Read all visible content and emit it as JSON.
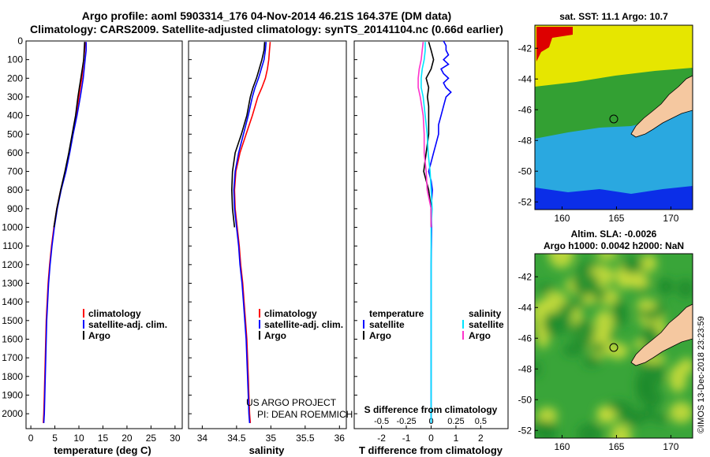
{
  "title_line1": "Argo profile: aoml 5903314_176 04-Nov-2014 46.21S 164.37E (DM data)",
  "title_line2": "Climatology: CARS2009. Satellite-adjusted climatology: synTS_20141104.nc (0.66d earlier)",
  "watermark": "©IMOS 13-Dec-2018 23:23:59",
  "credit_line1": "US ARGO PROJECT",
  "credit_line2": "PI: DEAN ROEMMICH",
  "colors": {
    "climatology": "#ff0000",
    "satellite": "#0000ff",
    "argo": "#000000",
    "s_satellite": "#00e5ff",
    "s_argo": "#ff33cc",
    "yellow_water": "#e6e600",
    "green_water": "#33a033",
    "blue_water": "#2aa8e0",
    "land": "#f5c8a0"
  },
  "chart_data": [
    {
      "type": "line",
      "name": "temperature panel",
      "xlabel": "temperature (deg C)",
      "ylabel": "",
      "xlim": [
        -1,
        31.5
      ],
      "ylim": [
        2080,
        0
      ],
      "xticks": [
        "0",
        "5",
        "10",
        "15",
        "20",
        "25",
        "30"
      ],
      "yticks": [
        "0",
        "100",
        "200",
        "300",
        "400",
        "500",
        "600",
        "700",
        "800",
        "900",
        "1000",
        "1100",
        "1200",
        "1300",
        "1400",
        "1500",
        "1600",
        "1700",
        "1800",
        "1900",
        "2000"
      ],
      "legend": [
        "climatology",
        "satellite-adj. clim.",
        "Argo"
      ],
      "series": [
        {
          "name": "climatology",
          "depth": [
            5,
            50,
            100,
            150,
            200,
            250,
            300,
            400,
            500,
            600,
            700,
            800,
            900,
            1000,
            1100,
            1200,
            1300,
            1400,
            1500,
            1600,
            1700,
            1800,
            1900,
            2000,
            2050
          ],
          "values": [
            11.3,
            11.2,
            11.0,
            10.8,
            10.6,
            10.3,
            10.0,
            9.4,
            8.7,
            8.0,
            7.2,
            6.2,
            5.4,
            4.8,
            4.3,
            3.9,
            3.6,
            3.4,
            3.2,
            3.1,
            3.0,
            2.9,
            2.8,
            2.7,
            2.6
          ]
        },
        {
          "name": "satellite-adj. clim.",
          "depth": [
            5,
            50,
            100,
            150,
            200,
            250,
            300,
            400,
            500,
            600,
            700,
            800,
            900,
            1000,
            1100,
            1200,
            1300,
            1400,
            1500,
            1600,
            1700,
            1800,
            1900,
            2000,
            2050
          ],
          "values": [
            11.5,
            11.5,
            11.3,
            11.1,
            10.9,
            10.6,
            10.3,
            9.6,
            8.8,
            8.1,
            7.3,
            6.3,
            5.5,
            4.9,
            4.4,
            4.0,
            3.7,
            3.5,
            3.3,
            3.2,
            3.1,
            3.0,
            2.9,
            2.8,
            2.7
          ]
        },
        {
          "name": "Argo",
          "depth": [
            5,
            50,
            100,
            150,
            200,
            250,
            300,
            400,
            500,
            600,
            700,
            800,
            900,
            1000
          ],
          "values": [
            11.2,
            11.1,
            11.0,
            10.7,
            10.4,
            10.1,
            9.8,
            9.3,
            8.6,
            7.9,
            7.1,
            6.2,
            5.4,
            4.8
          ]
        }
      ]
    },
    {
      "type": "line",
      "name": "salinity panel",
      "xlabel": "salinity",
      "ylabel": "",
      "xlim": [
        33.8,
        36.1
      ],
      "ylim": [
        2080,
        0
      ],
      "xticks": [
        "34",
        "34.5",
        "35",
        "35.5",
        "36"
      ],
      "legend": [
        "climatology",
        "satellite-adj. clim.",
        "Argo"
      ],
      "series": [
        {
          "name": "climatology",
          "depth": [
            5,
            50,
            100,
            150,
            200,
            250,
            300,
            400,
            500,
            600,
            700,
            800,
            900,
            1000,
            1100,
            1200,
            1300,
            1400,
            1500,
            1600,
            1700,
            1800,
            1900,
            2000,
            2050
          ],
          "values": [
            34.99,
            34.98,
            34.97,
            34.95,
            34.92,
            34.87,
            34.81,
            34.73,
            34.64,
            34.55,
            34.49,
            34.47,
            34.48,
            34.51,
            34.54,
            34.56,
            34.59,
            34.61,
            34.63,
            34.65,
            34.66,
            34.67,
            34.68,
            34.69,
            34.7
          ]
        },
        {
          "name": "satellite-adj. clim.",
          "depth": [
            5,
            50,
            100,
            150,
            200,
            250,
            300,
            400,
            500,
            600,
            700,
            800,
            900,
            1000,
            1100,
            1200,
            1300,
            1400,
            1500,
            1600,
            1700,
            1800,
            1900,
            2000,
            2050
          ],
          "values": [
            34.93,
            34.92,
            34.9,
            34.86,
            34.82,
            34.77,
            34.73,
            34.67,
            34.6,
            34.53,
            34.48,
            34.46,
            34.47,
            34.5,
            34.53,
            34.55,
            34.58,
            34.6,
            34.62,
            34.64,
            34.65,
            34.66,
            34.67,
            34.68,
            34.69
          ]
        },
        {
          "name": "Argo",
          "depth": [
            5,
            50,
            100,
            150,
            200,
            250,
            300,
            400,
            500,
            600,
            700,
            800,
            900,
            1000
          ],
          "values": [
            34.91,
            34.9,
            34.87,
            34.83,
            34.79,
            34.74,
            34.7,
            34.65,
            34.57,
            34.48,
            34.44,
            34.43,
            34.44,
            34.47
          ]
        }
      ]
    },
    {
      "type": "line",
      "name": "difference panel",
      "xlabel": "T difference from climatology",
      "xlabel2": "S difference from climatology",
      "xlim": [
        -3.1,
        3.1
      ],
      "ylim": [
        2080,
        0
      ],
      "xticks": [
        "-2",
        "-1",
        "0",
        "1",
        "2"
      ],
      "xticks_top": [
        "-0.5",
        "-0.25",
        "0",
        "0.25",
        "0.5"
      ],
      "legend_left_title": "temperature",
      "legend_right_title": "salinity",
      "legend_left": [
        "satellite",
        "Argo"
      ],
      "legend_right": [
        "satellite",
        "Argo"
      ],
      "series": [
        {
          "name": "T satellite",
          "depth": [
            0,
            25,
            50,
            75,
            100,
            125,
            150,
            175,
            200,
            225,
            250,
            275,
            300,
            350,
            400,
            450,
            500,
            550,
            600,
            650,
            700,
            750,
            800,
            900,
            1000,
            1200,
            1400,
            1600,
            1800,
            2000,
            2050
          ],
          "values": [
            0.5,
            0.6,
            0.6,
            0.7,
            0.5,
            0.7,
            0.4,
            0.5,
            0.7,
            0.5,
            0.6,
            0.8,
            0.6,
            0.5,
            0.4,
            0.3,
            0.3,
            0.2,
            0.1,
            0.0,
            -0.1,
            0.0,
            0.05,
            0.0,
            0.02,
            0.0,
            0.0,
            0.0,
            0.0,
            0.0,
            0.0
          ]
        },
        {
          "name": "T Argo",
          "depth": [
            5,
            50,
            100,
            150,
            200,
            250,
            300,
            350,
            400,
            500,
            600,
            700,
            800,
            900,
            1000
          ],
          "values": [
            -0.1,
            0.0,
            0.1,
            0.0,
            -0.2,
            -0.1,
            -0.15,
            -0.1,
            -0.1,
            -0.1,
            -0.2,
            -0.3,
            -0.1,
            0.0,
            0.0
          ]
        },
        {
          "name": "S satellite",
          "depth": [
            5,
            50,
            100,
            150,
            200,
            250,
            300,
            400,
            500,
            600,
            700,
            800,
            900,
            1000,
            1200,
            1400,
            1600,
            1800,
            2000,
            2050
          ],
          "values": [
            -0.06,
            -0.06,
            -0.07,
            -0.09,
            -0.1,
            -0.1,
            -0.08,
            -0.06,
            -0.04,
            -0.03,
            -0.01,
            0.0,
            0.01,
            0.0,
            0.0,
            0.0,
            0.0,
            0.0,
            0.0,
            0.0
          ]
        },
        {
          "name": "S Argo",
          "depth": [
            5,
            50,
            100,
            150,
            200,
            250,
            300,
            400,
            500,
            600,
            700,
            800,
            900,
            1000
          ],
          "values": [
            -0.08,
            -0.09,
            -0.1,
            -0.12,
            -0.13,
            -0.13,
            -0.11,
            -0.08,
            -0.07,
            -0.07,
            -0.05,
            -0.04,
            0.0,
            0.0
          ]
        }
      ]
    },
    {
      "type": "heatmap",
      "name": "SST map",
      "title": "sat. SST: 11.1  Argo: 10.7",
      "xticks": [
        "160",
        "165",
        "170"
      ],
      "yticks": [
        "-42",
        "-44",
        "-46",
        "-48",
        "-50",
        "-52"
      ],
      "xlim": [
        157.5,
        172
      ],
      "ylim": [
        -52.5,
        -40.5
      ],
      "marker": {
        "lon": 164.37,
        "lat": -46.21
      }
    },
    {
      "type": "heatmap",
      "name": "SLA map",
      "title": "Altim. SLA: -0.0026",
      "title2": "Argo h1000: 0.0042 h2000: NaN",
      "xticks": [
        "160",
        "165",
        "170"
      ],
      "yticks": [
        "-42",
        "-44",
        "-46",
        "-48",
        "-50",
        "-52"
      ],
      "xlim": [
        157.5,
        172
      ],
      "ylim": [
        -52.5,
        -40.5
      ],
      "marker": {
        "lon": 164.37,
        "lat": -46.21
      }
    }
  ]
}
